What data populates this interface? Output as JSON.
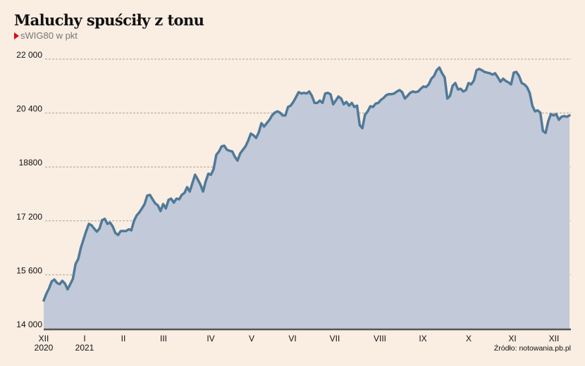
{
  "title": "Maluchy spuściły z tonu",
  "subtitle": "sWIG80 w pkt",
  "source": "Źródło: notowania.pb.pl",
  "colors": {
    "background": "#faede2",
    "fill": "#c2c9d8",
    "line": "#4f7a99",
    "grid": "#a9a39c",
    "axis": "#555555",
    "marker": "#e2001a"
  },
  "chart_data": {
    "type": "area",
    "title": "Maluchy spuściły z tonu",
    "subtitle": "sWIG80 w pkt",
    "xlabel": "",
    "ylabel": "sWIG80 w pkt",
    "ylim": [
      14000,
      22000
    ],
    "yticks": [
      22000,
      20400,
      18800,
      17200,
      15600,
      14000
    ],
    "ytick_labels": [
      "22 000",
      "20 400",
      "18800",
      "17 200",
      "15 600",
      "14 000"
    ],
    "grid": true,
    "xtick_labels": [
      {
        "month": "XII",
        "year": "2020"
      },
      {
        "month": "I",
        "year": "2021"
      },
      {
        "month": "II"
      },
      {
        "month": "III"
      },
      {
        "month": "IV"
      },
      {
        "month": "V"
      },
      {
        "month": "VI"
      },
      {
        "month": "VII"
      },
      {
        "month": "VIII"
      },
      {
        "month": "IX"
      },
      {
        "month": "X"
      },
      {
        "month": "XI"
      },
      {
        "month": "XII"
      }
    ],
    "series": [
      {
        "name": "sWIG80",
        "values": [
          14835,
          15040,
          15190,
          15400,
          15460,
          15360,
          15320,
          15420,
          15340,
          15170,
          15320,
          15480,
          15920,
          16070,
          16400,
          16650,
          16900,
          17110,
          17070,
          16970,
          16880,
          16970,
          17220,
          17260,
          17110,
          17150,
          17030,
          16840,
          16780,
          16900,
          16900,
          16900,
          16950,
          16920,
          17200,
          17360,
          17450,
          17570,
          17700,
          17950,
          17970,
          17840,
          17720,
          17660,
          17490,
          17700,
          17570,
          17820,
          17860,
          17740,
          17860,
          17840,
          17970,
          18030,
          18200,
          18070,
          18320,
          18570,
          18430,
          18280,
          18070,
          18370,
          18600,
          18570,
          18740,
          19160,
          19260,
          19410,
          19430,
          19310,
          19280,
          19260,
          19100,
          18990,
          19200,
          19310,
          19410,
          19580,
          19790,
          19740,
          19660,
          19830,
          20100,
          20000,
          20100,
          20200,
          20330,
          20410,
          20450,
          20410,
          20330,
          20330,
          20580,
          20620,
          20730,
          20870,
          21020,
          20980,
          21000,
          20980,
          21040,
          20910,
          20700,
          20700,
          20770,
          20700,
          20980,
          21000,
          20960,
          20660,
          20770,
          20890,
          20830,
          20660,
          20730,
          20620,
          20700,
          20580,
          20620,
          20040,
          19950,
          20350,
          20450,
          20600,
          20580,
          20680,
          20700,
          20790,
          20850,
          20930,
          20960,
          20960,
          20980,
          21040,
          21080,
          21020,
          20830,
          20910,
          21000,
          21040,
          21020,
          21040,
          21120,
          21190,
          21170,
          21250,
          21420,
          21500,
          21670,
          21750,
          21580,
          21460,
          20830,
          20910,
          21210,
          21290,
          21100,
          21120,
          21040,
          21080,
          21290,
          21250,
          21370,
          21670,
          21710,
          21670,
          21620,
          21600,
          21580,
          21540,
          21580,
          21460,
          21330,
          21420,
          21350,
          21310,
          21250,
          21600,
          21620,
          21500,
          21290,
          21250,
          21170,
          21000,
          20620,
          20450,
          20480,
          20410,
          19870,
          19810,
          20160,
          20370,
          20330,
          20370,
          20200,
          20290,
          20310,
          20290,
          20330
        ]
      }
    ]
  }
}
